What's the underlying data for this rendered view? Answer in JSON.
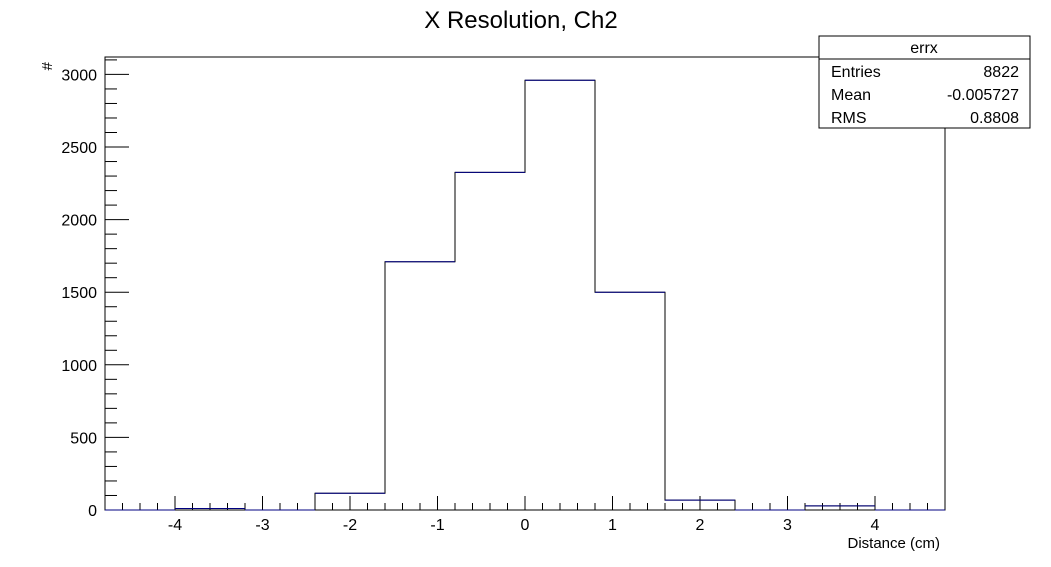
{
  "chart_data": {
    "type": "histogram",
    "title": "X Resolution, Ch2",
    "xlabel": "Distance (cm)",
    "ylabel": "#",
    "xlim": [
      -4.8,
      4.8
    ],
    "ylim": [
      0,
      3120
    ],
    "grid": false,
    "line_color": "#000080",
    "bin_edges": [
      -4.8,
      -4.0,
      -3.2,
      -2.4,
      -1.6,
      -0.8,
      0.0,
      0.8,
      1.6,
      2.4,
      3.2,
      4.0,
      4.8
    ],
    "values": [
      0,
      10,
      0,
      115,
      1710,
      2325,
      2960,
      1500,
      68,
      0,
      28,
      0
    ],
    "x_ticks": [
      {
        "value": -4,
        "label": "-4"
      },
      {
        "value": -3,
        "label": "-3"
      },
      {
        "value": -2,
        "label": "-2"
      },
      {
        "value": -1,
        "label": "-1"
      },
      {
        "value": 0,
        "label": "0"
      },
      {
        "value": 1,
        "label": "1"
      },
      {
        "value": 2,
        "label": "2"
      },
      {
        "value": 3,
        "label": "3"
      },
      {
        "value": 4,
        "label": "4"
      }
    ],
    "y_ticks": [
      {
        "value": 0,
        "label": "0"
      },
      {
        "value": 500,
        "label": "500"
      },
      {
        "value": 1000,
        "label": "1000"
      },
      {
        "value": 1500,
        "label": "1500"
      },
      {
        "value": 2000,
        "label": "2000"
      },
      {
        "value": 2500,
        "label": "2500"
      },
      {
        "value": 3000,
        "label": "3000"
      }
    ],
    "stats_box": {
      "placement": "top-right",
      "title": "errx",
      "rows": [
        {
          "label": "Entries",
          "value": "8822"
        },
        {
          "label": "Mean",
          "value": "-0.005727"
        },
        {
          "label": "RMS",
          "value": "0.8808"
        }
      ]
    }
  }
}
